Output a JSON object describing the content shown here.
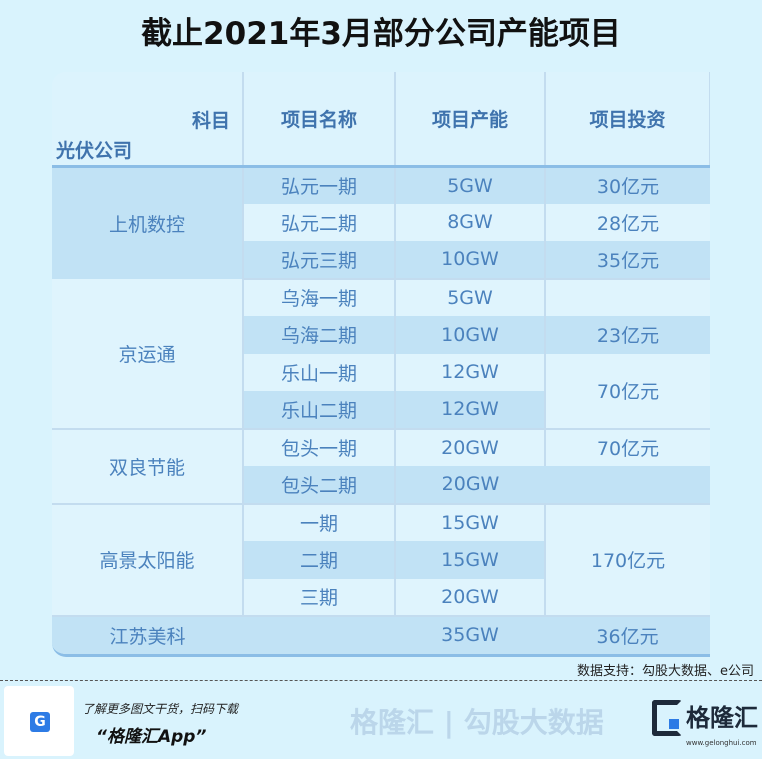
{
  "title": "截止2021年3月部分公司产能项目",
  "header": {
    "corner_top": "科目",
    "corner_bottom": "光伏公司",
    "col1": "项目名称",
    "col2": "项目产能",
    "col3": "项目投资"
  },
  "rows": [
    {
      "company": "上机数控",
      "project": "弘元一期",
      "capacity": "5GW",
      "investment": "30亿元"
    },
    {
      "project": "弘元二期",
      "capacity": "8GW",
      "investment": "28亿元"
    },
    {
      "project": "弘元三期",
      "capacity": "10GW",
      "investment": "35亿元"
    },
    {
      "company": "京运通",
      "project": "乌海一期",
      "capacity": "5GW",
      "investment": ""
    },
    {
      "project": "乌海二期",
      "capacity": "10GW",
      "investment": "23亿元"
    },
    {
      "project": "乐山一期",
      "capacity": "12GW",
      "investment": "70亿元"
    },
    {
      "project": "乐山二期",
      "capacity": "12GW"
    },
    {
      "company": "双良节能",
      "project": "包头一期",
      "capacity": "20GW",
      "investment": "70亿元"
    },
    {
      "project": "包头二期",
      "capacity": "20GW",
      "investment": ""
    },
    {
      "company": "高景太阳能",
      "project": "一期",
      "capacity": "15GW",
      "investment": "170亿元"
    },
    {
      "project": "二期",
      "capacity": "15GW"
    },
    {
      "project": "三期",
      "capacity": "20GW"
    },
    {
      "company": "江苏美科",
      "project": "",
      "capacity": "35GW",
      "investment": "36亿元"
    }
  ],
  "watermark": "格隆汇 | 勾股大数据",
  "source": "数据支持：勾股大数据、e公司",
  "footer": {
    "line1": "了解更多图文干货，扫码下载",
    "line2": "“格隆汇App”",
    "logo_text": "格隆汇",
    "logo_url": "www.gelonghui.com"
  }
}
